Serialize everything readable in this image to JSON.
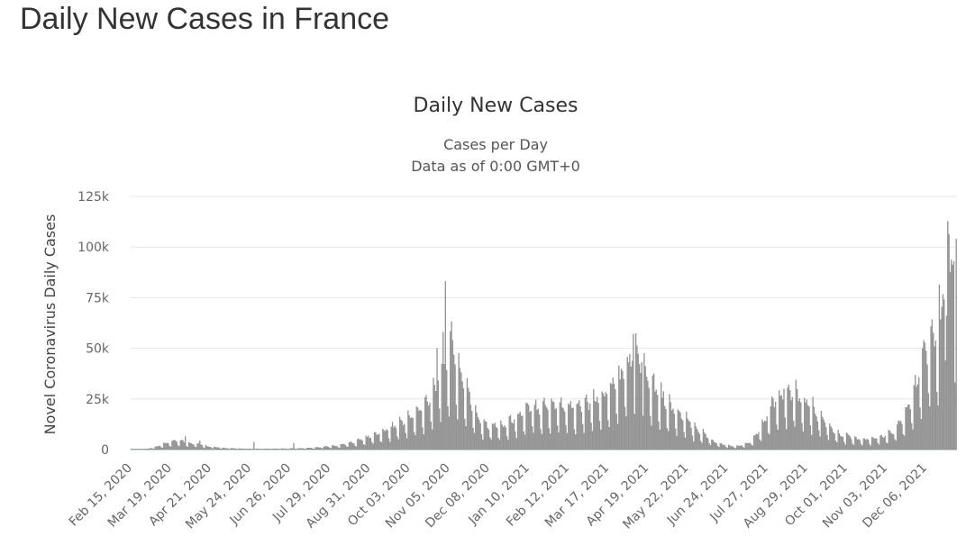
{
  "page": {
    "heading": "Daily New Cases in France"
  },
  "colors": {
    "bar": "#999999",
    "bar_edge": "#7d7d7d",
    "grid": "#e6e6e6",
    "baseline": "#aabbdd",
    "text": "#333333",
    "tick": "#666666"
  },
  "chart_data": {
    "type": "bar",
    "title": "Daily New Cases",
    "subtitle": [
      "Cases per Day",
      "Data as of 0:00 GMT+0"
    ],
    "ylabel": "Novel Coronavirus Daily Cases",
    "xlabel": "",
    "ylim": [
      0,
      125000
    ],
    "y_ticks": [
      0,
      25000,
      50000,
      75000,
      100000,
      125000
    ],
    "y_tick_labels": [
      "0",
      "25k",
      "50k",
      "75k",
      "100k",
      "125k"
    ],
    "x_range": [
      "2020-02-15",
      "2021-12-31"
    ],
    "x_tick_labels": [
      "Feb 15, 2020",
      "Mar 19, 2020",
      "Apr 21, 2020",
      "May 24, 2020",
      "Jun 26, 2020",
      "Jul 29, 2020",
      "Aug 31, 2020",
      "Oct 03, 2020",
      "Nov 05, 2020",
      "Dec 08, 2020",
      "Jan 10, 2021",
      "Feb 12, 2021",
      "Mar 17, 2021",
      "Apr 19, 2021",
      "May 22, 2021",
      "Jun 24, 2021",
      "Jul 27, 2021",
      "Aug 29, 2021",
      "Oct 01, 2021",
      "Nov 03, 2021",
      "Dec 06, 2021"
    ],
    "grid": "horizontal",
    "legend": "none",
    "series": [
      {
        "note": "weekly estimates of the daily new cases level, one value per week starting on each date",
        "weeks": [
          "2020-02-15",
          "2020-02-22",
          "2020-02-29",
          "2020-03-07",
          "2020-03-14",
          "2020-03-21",
          "2020-03-28",
          "2020-04-04",
          "2020-04-11",
          "2020-04-18",
          "2020-04-25",
          "2020-05-02",
          "2020-05-09",
          "2020-05-16",
          "2020-05-23",
          "2020-05-30",
          "2020-06-06",
          "2020-06-13",
          "2020-06-20",
          "2020-06-27",
          "2020-07-04",
          "2020-07-11",
          "2020-07-18",
          "2020-07-25",
          "2020-08-01",
          "2020-08-08",
          "2020-08-15",
          "2020-08-22",
          "2020-08-29",
          "2020-09-05",
          "2020-09-12",
          "2020-09-19",
          "2020-09-26",
          "2020-10-03",
          "2020-10-10",
          "2020-10-17",
          "2020-10-24",
          "2020-10-31",
          "2020-11-07",
          "2020-11-14",
          "2020-11-21",
          "2020-11-28",
          "2020-12-05",
          "2020-12-12",
          "2020-12-19",
          "2020-12-26",
          "2021-01-02",
          "2021-01-09",
          "2021-01-16",
          "2021-01-23",
          "2021-01-30",
          "2021-02-06",
          "2021-02-13",
          "2021-02-20",
          "2021-02-27",
          "2021-03-06",
          "2021-03-13",
          "2021-03-20",
          "2021-03-27",
          "2021-04-03",
          "2021-04-10",
          "2021-04-17",
          "2021-04-24",
          "2021-05-01",
          "2021-05-08",
          "2021-05-15",
          "2021-05-22",
          "2021-05-29",
          "2021-06-05",
          "2021-06-12",
          "2021-06-19",
          "2021-06-26",
          "2021-07-03",
          "2021-07-10",
          "2021-07-17",
          "2021-07-24",
          "2021-07-31",
          "2021-08-07",
          "2021-08-14",
          "2021-08-21",
          "2021-08-28",
          "2021-09-04",
          "2021-09-11",
          "2021-09-18",
          "2021-09-25",
          "2021-10-02",
          "2021-10-09",
          "2021-10-16",
          "2021-10-23",
          "2021-10-30",
          "2021-11-06",
          "2021-11-13",
          "2021-11-20",
          "2021-11-27",
          "2021-12-04",
          "2021-12-11",
          "2021-12-18",
          "2021-12-25"
        ],
        "values": [
          20,
          50,
          300,
          1200,
          2500,
          3800,
          4000,
          3000,
          2500,
          1500,
          1000,
          700,
          500,
          400,
          300,
          250,
          300,
          350,
          400,
          450,
          550,
          700,
          900,
          1300,
          1600,
          2200,
          3000,
          4200,
          5500,
          7000,
          8500,
          10500,
          12500,
          14500,
          17000,
          22000,
          28000,
          38000,
          48000,
          36000,
          25000,
          16000,
          12000,
          11000,
          11000,
          13000,
          16000,
          18000,
          20000,
          20000,
          21000,
          20500,
          20000,
          20000,
          21000,
          22000,
          25000,
          29000,
          33000,
          40000,
          45000,
          38000,
          30000,
          24000,
          20000,
          16000,
          13000,
          10000,
          7000,
          4000,
          2500,
          1600,
          1500,
          2500,
          5500,
          12000,
          20000,
          25000,
          26000,
          25000,
          22000,
          18000,
          14000,
          10000,
          7000,
          6000,
          5000,
          4500,
          5000,
          5500,
          7500,
          11000,
          18000,
          28000,
          42000,
          52000,
          60000,
          90000
        ],
        "spikes": [
          {
            "date": "2020-03-31",
            "value": 6500
          },
          {
            "date": "2020-04-12",
            "value": 4300
          },
          {
            "date": "2020-05-27",
            "value": 3600
          },
          {
            "date": "2020-06-29",
            "value": 3200
          },
          {
            "date": "2020-11-02",
            "value": 83000
          },
          {
            "date": "2020-10-31",
            "value": 58000
          },
          {
            "date": "2020-10-26",
            "value": 50000
          },
          {
            "date": "2021-04-07",
            "value": 57000
          },
          {
            "date": "2021-04-14",
            "value": 43000
          },
          {
            "date": "2021-08-10",
            "value": 30000
          },
          {
            "date": "2021-12-31",
            "value": 104000
          },
          {
            "date": "2021-12-29",
            "value": 93000
          },
          {
            "date": "2021-12-23",
            "value": 66000
          }
        ]
      }
    ]
  }
}
